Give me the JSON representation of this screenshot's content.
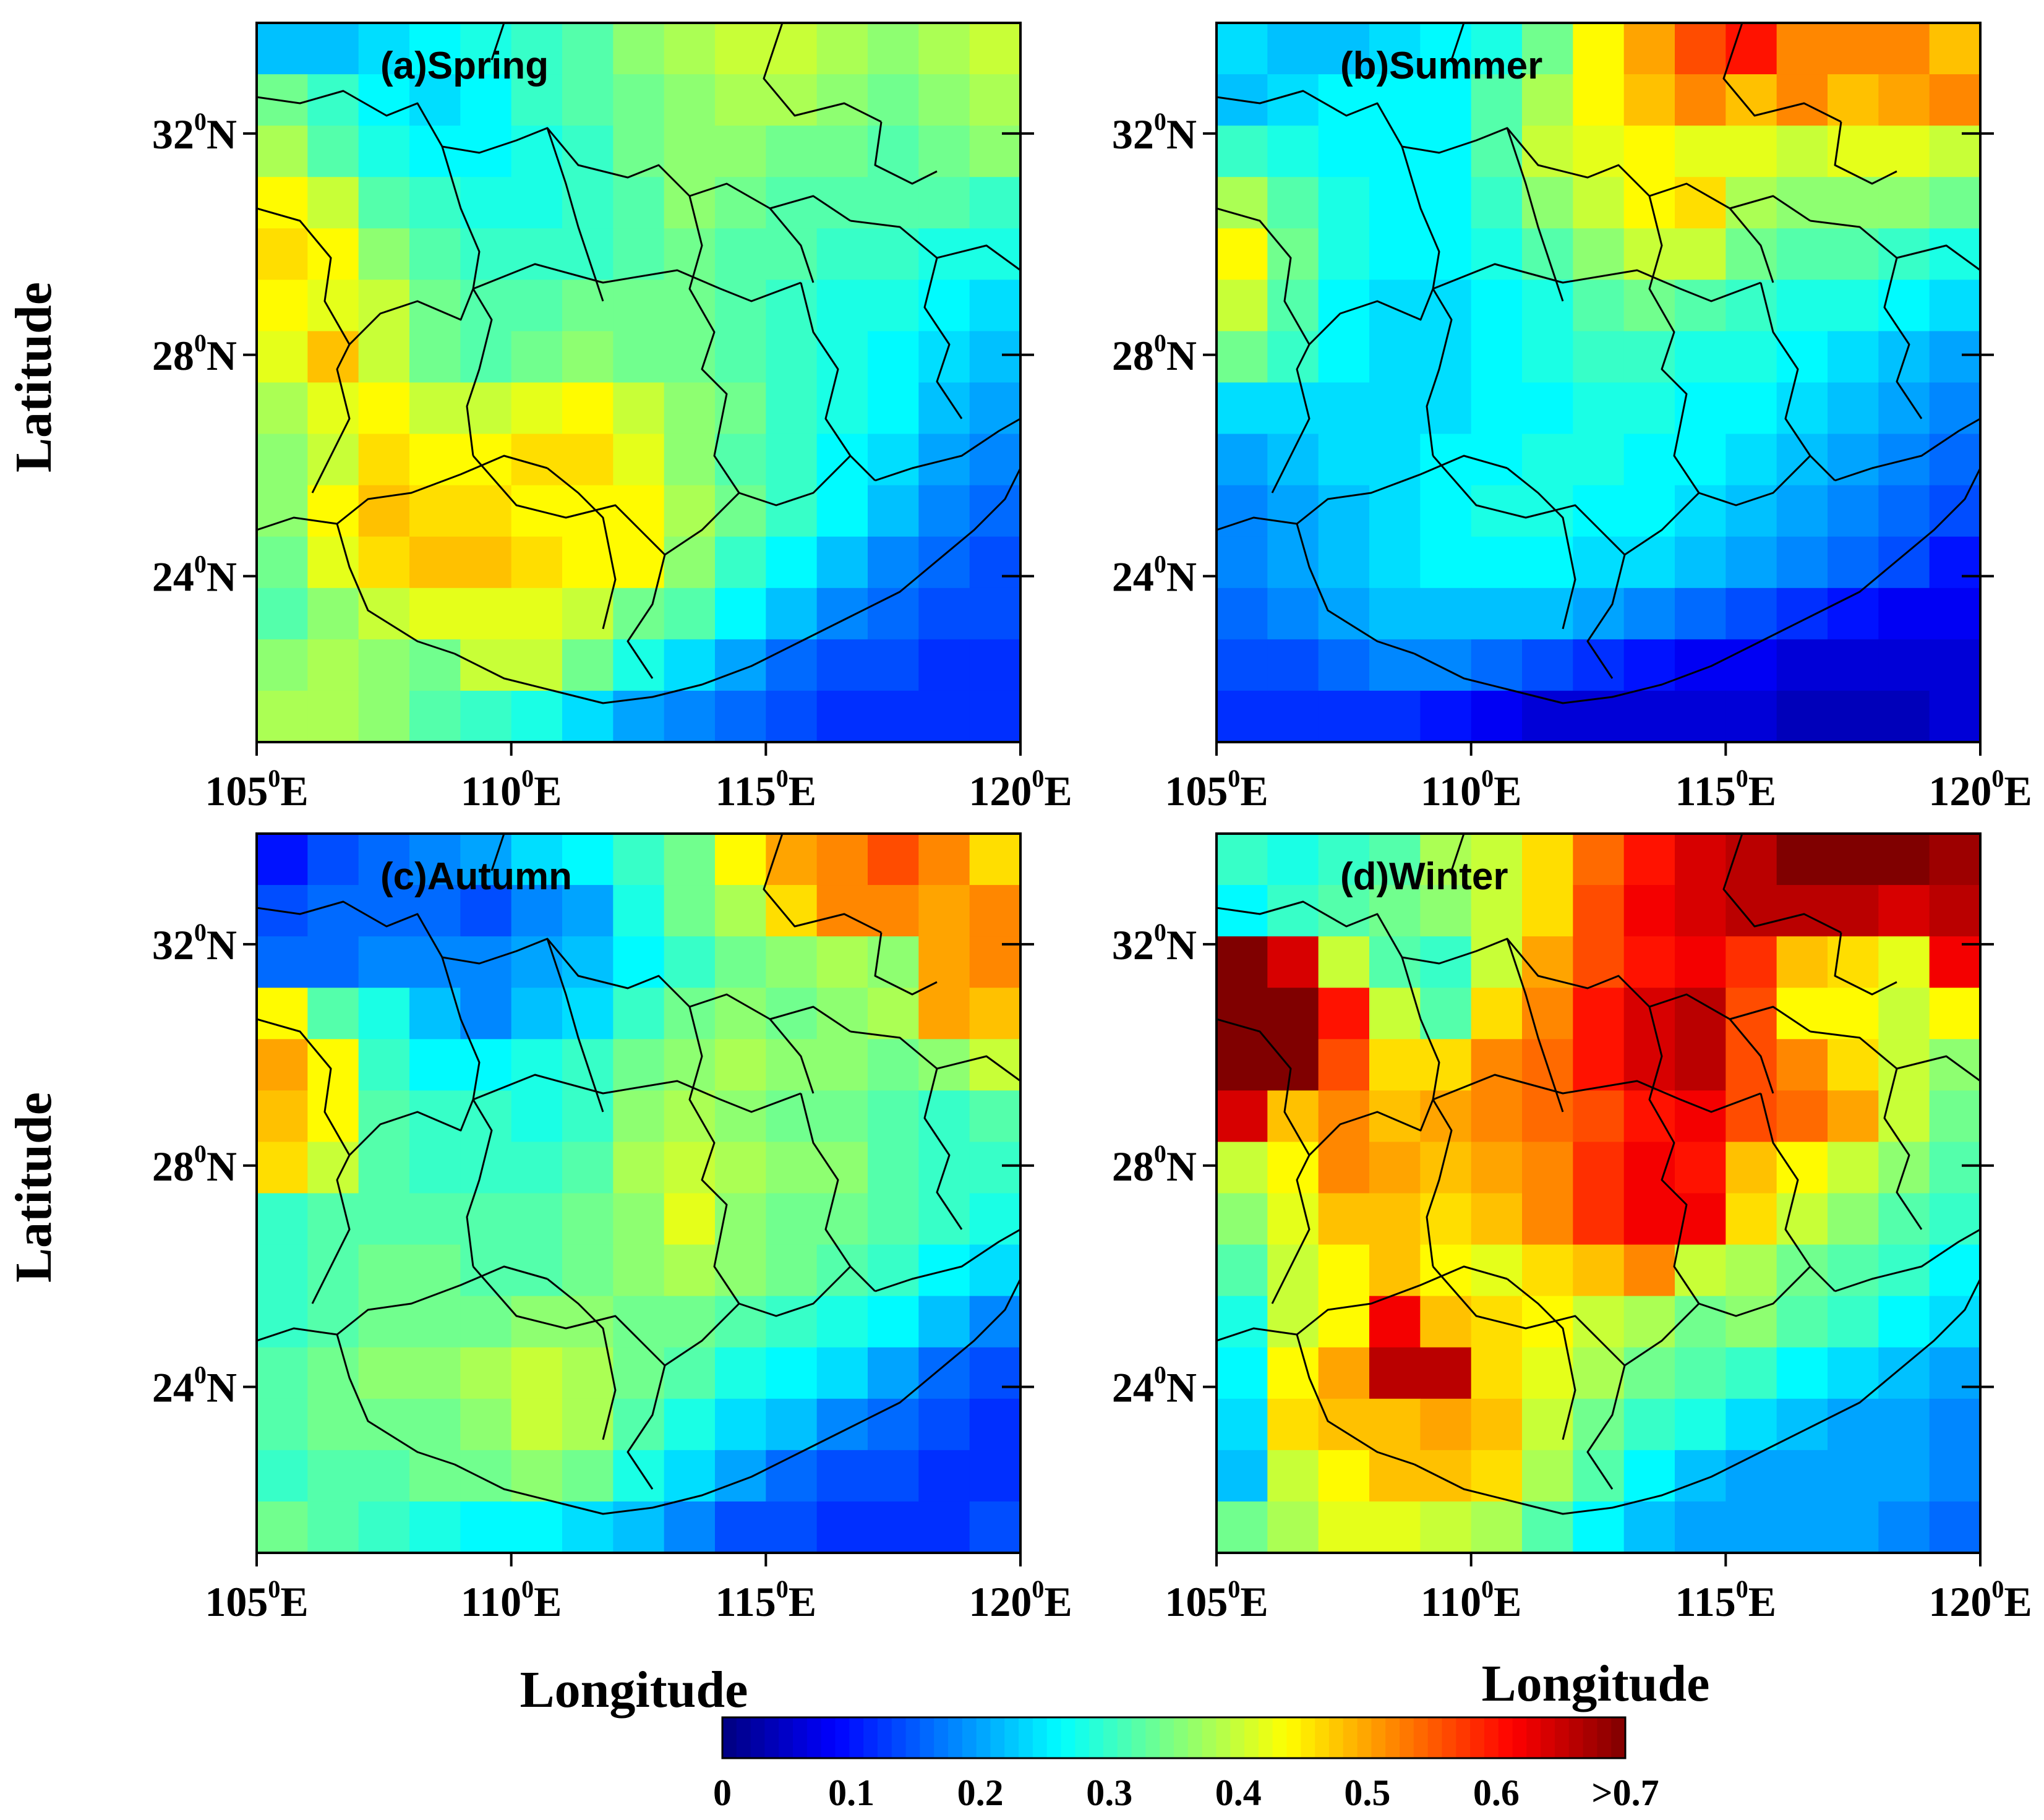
{
  "figure": {
    "xlabel": "Longitude",
    "ylabel": "Latitude",
    "lon_ticks": [
      105,
      110,
      115,
      120
    ],
    "lat_ticks": [
      24,
      28,
      32
    ],
    "lon_suffix": "E",
    "lat_suffix": "N",
    "degree_mark": "0"
  },
  "colorbar": {
    "min": 0,
    "max": 0.7,
    "tick_labels": [
      "0",
      "0.1",
      "0.2",
      "0.3",
      "0.4",
      "0.5",
      "0.6",
      ">0.7"
    ],
    "colormap": "jet"
  },
  "panels": [
    {
      "title": "(a)Spring",
      "grid_values": [
        [
          0.22,
          0.22,
          0.24,
          0.26,
          0.28,
          0.3,
          0.32,
          0.36,
          0.38,
          0.4,
          0.4,
          0.38,
          0.36,
          0.38,
          0.4
        ],
        [
          0.34,
          0.3,
          0.26,
          0.24,
          0.26,
          0.3,
          0.32,
          0.34,
          0.36,
          0.38,
          0.38,
          0.36,
          0.34,
          0.36,
          0.38
        ],
        [
          0.38,
          0.32,
          0.28,
          0.26,
          0.26,
          0.28,
          0.3,
          0.34,
          0.36,
          0.36,
          0.34,
          0.34,
          0.32,
          0.34,
          0.36
        ],
        [
          0.44,
          0.4,
          0.32,
          0.3,
          0.28,
          0.28,
          0.3,
          0.32,
          0.36,
          0.34,
          0.32,
          0.32,
          0.32,
          0.32,
          0.3
        ],
        [
          0.46,
          0.44,
          0.36,
          0.32,
          0.3,
          0.3,
          0.3,
          0.32,
          0.34,
          0.32,
          0.32,
          0.3,
          0.3,
          0.28,
          0.28
        ],
        [
          0.44,
          0.42,
          0.4,
          0.34,
          0.32,
          0.32,
          0.34,
          0.34,
          0.34,
          0.32,
          0.3,
          0.28,
          0.28,
          0.26,
          0.24
        ],
        [
          0.42,
          0.48,
          0.4,
          0.34,
          0.32,
          0.34,
          0.36,
          0.34,
          0.34,
          0.32,
          0.3,
          0.28,
          0.26,
          0.24,
          0.22
        ],
        [
          0.38,
          0.42,
          0.44,
          0.4,
          0.4,
          0.42,
          0.44,
          0.4,
          0.36,
          0.34,
          0.3,
          0.28,
          0.26,
          0.22,
          0.2
        ],
        [
          0.36,
          0.4,
          0.46,
          0.44,
          0.44,
          0.46,
          0.46,
          0.42,
          0.36,
          0.32,
          0.3,
          0.26,
          0.24,
          0.2,
          0.18
        ],
        [
          0.36,
          0.44,
          0.48,
          0.46,
          0.46,
          0.44,
          0.44,
          0.44,
          0.38,
          0.34,
          0.3,
          0.26,
          0.22,
          0.18,
          0.16
        ],
        [
          0.34,
          0.42,
          0.46,
          0.48,
          0.48,
          0.46,
          0.44,
          0.44,
          0.36,
          0.3,
          0.26,
          0.22,
          0.18,
          0.16,
          0.14
        ],
        [
          0.32,
          0.36,
          0.4,
          0.42,
          0.42,
          0.42,
          0.4,
          0.34,
          0.32,
          0.26,
          0.22,
          0.18,
          0.16,
          0.14,
          0.14
        ],
        [
          0.36,
          0.38,
          0.36,
          0.34,
          0.4,
          0.4,
          0.34,
          0.28,
          0.24,
          0.2,
          0.16,
          0.14,
          0.14,
          0.12,
          0.12
        ],
        [
          0.38,
          0.38,
          0.36,
          0.32,
          0.3,
          0.28,
          0.24,
          0.2,
          0.18,
          0.16,
          0.14,
          0.12,
          0.12,
          0.12,
          0.12
        ]
      ]
    },
    {
      "title": "(b)Summer",
      "grid_values": [
        [
          0.24,
          0.22,
          0.22,
          0.24,
          0.26,
          0.28,
          0.34,
          0.44,
          0.5,
          0.56,
          0.6,
          0.52,
          0.52,
          0.52,
          0.48
        ],
        [
          0.22,
          0.24,
          0.26,
          0.26,
          0.26,
          0.32,
          0.38,
          0.44,
          0.48,
          0.52,
          0.48,
          0.52,
          0.48,
          0.5,
          0.52
        ],
        [
          0.3,
          0.28,
          0.26,
          0.26,
          0.26,
          0.32,
          0.4,
          0.42,
          0.44,
          0.42,
          0.42,
          0.4,
          0.42,
          0.42,
          0.4
        ],
        [
          0.38,
          0.32,
          0.28,
          0.26,
          0.26,
          0.3,
          0.36,
          0.4,
          0.44,
          0.46,
          0.38,
          0.36,
          0.36,
          0.36,
          0.34
        ],
        [
          0.44,
          0.34,
          0.28,
          0.26,
          0.26,
          0.28,
          0.32,
          0.36,
          0.4,
          0.4,
          0.34,
          0.32,
          0.32,
          0.3,
          0.28
        ],
        [
          0.4,
          0.32,
          0.26,
          0.24,
          0.24,
          0.26,
          0.28,
          0.32,
          0.34,
          0.32,
          0.3,
          0.28,
          0.28,
          0.26,
          0.24
        ],
        [
          0.34,
          0.3,
          0.26,
          0.24,
          0.24,
          0.26,
          0.28,
          0.3,
          0.3,
          0.28,
          0.28,
          0.26,
          0.24,
          0.22,
          0.2
        ],
        [
          0.24,
          0.24,
          0.24,
          0.24,
          0.24,
          0.26,
          0.26,
          0.28,
          0.28,
          0.26,
          0.26,
          0.24,
          0.22,
          0.2,
          0.18
        ],
        [
          0.2,
          0.22,
          0.24,
          0.24,
          0.26,
          0.26,
          0.28,
          0.28,
          0.26,
          0.26,
          0.24,
          0.22,
          0.2,
          0.18,
          0.16
        ],
        [
          0.18,
          0.2,
          0.22,
          0.24,
          0.26,
          0.28,
          0.28,
          0.26,
          0.26,
          0.24,
          0.22,
          0.2,
          0.18,
          0.16,
          0.14
        ],
        [
          0.18,
          0.2,
          0.22,
          0.24,
          0.26,
          0.26,
          0.26,
          0.24,
          0.24,
          0.22,
          0.2,
          0.18,
          0.16,
          0.14,
          0.1
        ],
        [
          0.16,
          0.18,
          0.2,
          0.22,
          0.22,
          0.22,
          0.22,
          0.2,
          0.18,
          0.16,
          0.14,
          0.12,
          0.1,
          0.08,
          0.08
        ],
        [
          0.14,
          0.14,
          0.16,
          0.18,
          0.18,
          0.16,
          0.14,
          0.12,
          0.1,
          0.08,
          0.08,
          0.06,
          0.06,
          0.06,
          0.06
        ],
        [
          0.12,
          0.12,
          0.12,
          0.12,
          0.1,
          0.08,
          0.06,
          0.06,
          0.06,
          0.06,
          0.06,
          0.04,
          0.04,
          0.04,
          0.06
        ]
      ]
    },
    {
      "title": "(c)Autumn",
      "grid_values": [
        [
          0.1,
          0.14,
          0.16,
          0.18,
          0.2,
          0.24,
          0.26,
          0.3,
          0.34,
          0.44,
          0.5,
          0.52,
          0.56,
          0.52,
          0.46
        ],
        [
          0.14,
          0.16,
          0.16,
          0.16,
          0.14,
          0.18,
          0.2,
          0.28,
          0.34,
          0.38,
          0.46,
          0.52,
          0.52,
          0.5,
          0.52
        ],
        [
          0.16,
          0.16,
          0.18,
          0.18,
          0.18,
          0.2,
          0.22,
          0.26,
          0.3,
          0.34,
          0.36,
          0.38,
          0.36,
          0.5,
          0.52
        ],
        [
          0.44,
          0.32,
          0.28,
          0.22,
          0.18,
          0.22,
          0.24,
          0.3,
          0.34,
          0.36,
          0.34,
          0.36,
          0.38,
          0.5,
          0.48
        ],
        [
          0.5,
          0.44,
          0.3,
          0.26,
          0.26,
          0.28,
          0.3,
          0.34,
          0.36,
          0.38,
          0.36,
          0.36,
          0.34,
          0.36,
          0.4
        ],
        [
          0.48,
          0.44,
          0.32,
          0.3,
          0.3,
          0.28,
          0.3,
          0.36,
          0.38,
          0.36,
          0.34,
          0.34,
          0.32,
          0.3,
          0.32
        ],
        [
          0.46,
          0.4,
          0.32,
          0.3,
          0.3,
          0.3,
          0.32,
          0.38,
          0.4,
          0.38,
          0.36,
          0.36,
          0.32,
          0.3,
          0.3
        ],
        [
          0.3,
          0.32,
          0.32,
          0.32,
          0.32,
          0.32,
          0.34,
          0.36,
          0.42,
          0.36,
          0.34,
          0.34,
          0.32,
          0.3,
          0.28
        ],
        [
          0.3,
          0.32,
          0.34,
          0.34,
          0.32,
          0.32,
          0.34,
          0.36,
          0.38,
          0.36,
          0.34,
          0.32,
          0.3,
          0.26,
          0.24
        ],
        [
          0.3,
          0.32,
          0.34,
          0.34,
          0.34,
          0.36,
          0.36,
          0.34,
          0.34,
          0.32,
          0.3,
          0.28,
          0.26,
          0.22,
          0.18
        ],
        [
          0.32,
          0.34,
          0.36,
          0.36,
          0.38,
          0.4,
          0.38,
          0.34,
          0.32,
          0.28,
          0.26,
          0.24,
          0.2,
          0.16,
          0.14
        ],
        [
          0.32,
          0.34,
          0.34,
          0.34,
          0.36,
          0.4,
          0.38,
          0.32,
          0.28,
          0.24,
          0.22,
          0.18,
          0.16,
          0.14,
          0.12
        ],
        [
          0.3,
          0.32,
          0.32,
          0.34,
          0.34,
          0.36,
          0.34,
          0.28,
          0.24,
          0.2,
          0.16,
          0.14,
          0.14,
          0.12,
          0.12
        ],
        [
          0.34,
          0.32,
          0.3,
          0.28,
          0.26,
          0.26,
          0.24,
          0.22,
          0.18,
          0.14,
          0.14,
          0.12,
          0.12,
          0.12,
          0.14
        ]
      ]
    },
    {
      "title": "(d)Winter",
      "grid_values": [
        [
          0.3,
          0.28,
          0.3,
          0.32,
          0.38,
          0.4,
          0.46,
          0.54,
          0.6,
          0.64,
          0.66,
          0.7,
          0.72,
          0.72,
          0.68
        ],
        [
          0.26,
          0.3,
          0.32,
          0.34,
          0.36,
          0.4,
          0.46,
          0.56,
          0.62,
          0.64,
          0.66,
          0.66,
          0.66,
          0.64,
          0.66
        ],
        [
          0.74,
          0.64,
          0.4,
          0.32,
          0.3,
          0.4,
          0.5,
          0.56,
          0.6,
          0.62,
          0.58,
          0.48,
          0.46,
          0.42,
          0.62
        ],
        [
          0.76,
          0.74,
          0.6,
          0.4,
          0.32,
          0.46,
          0.52,
          0.6,
          0.64,
          0.66,
          0.56,
          0.44,
          0.44,
          0.4,
          0.44
        ],
        [
          0.78,
          0.72,
          0.56,
          0.46,
          0.46,
          0.52,
          0.54,
          0.6,
          0.64,
          0.66,
          0.56,
          0.52,
          0.46,
          0.4,
          0.36
        ],
        [
          0.64,
          0.48,
          0.52,
          0.48,
          0.5,
          0.52,
          0.54,
          0.56,
          0.6,
          0.62,
          0.56,
          0.54,
          0.5,
          0.4,
          0.34
        ],
        [
          0.4,
          0.44,
          0.52,
          0.5,
          0.48,
          0.5,
          0.52,
          0.58,
          0.62,
          0.6,
          0.48,
          0.44,
          0.4,
          0.36,
          0.32
        ],
        [
          0.36,
          0.42,
          0.48,
          0.48,
          0.46,
          0.48,
          0.52,
          0.58,
          0.62,
          0.62,
          0.46,
          0.4,
          0.36,
          0.32,
          0.3
        ],
        [
          0.32,
          0.4,
          0.44,
          0.48,
          0.44,
          0.42,
          0.46,
          0.48,
          0.52,
          0.4,
          0.38,
          0.34,
          0.32,
          0.3,
          0.26
        ],
        [
          0.28,
          0.4,
          0.44,
          0.62,
          0.48,
          0.46,
          0.44,
          0.4,
          0.38,
          0.34,
          0.36,
          0.32,
          0.3,
          0.26,
          0.24
        ],
        [
          0.26,
          0.44,
          0.5,
          0.66,
          0.66,
          0.46,
          0.42,
          0.38,
          0.34,
          0.32,
          0.3,
          0.26,
          0.24,
          0.22,
          0.2
        ],
        [
          0.24,
          0.46,
          0.48,
          0.48,
          0.5,
          0.48,
          0.4,
          0.34,
          0.3,
          0.28,
          0.24,
          0.22,
          0.2,
          0.2,
          0.18
        ],
        [
          0.22,
          0.4,
          0.44,
          0.48,
          0.48,
          0.46,
          0.38,
          0.32,
          0.26,
          0.22,
          0.2,
          0.2,
          0.2,
          0.2,
          0.18
        ],
        [
          0.34,
          0.38,
          0.42,
          0.42,
          0.4,
          0.38,
          0.32,
          0.26,
          0.22,
          0.2,
          0.2,
          0.2,
          0.2,
          0.18,
          0.16
        ]
      ]
    }
  ]
}
